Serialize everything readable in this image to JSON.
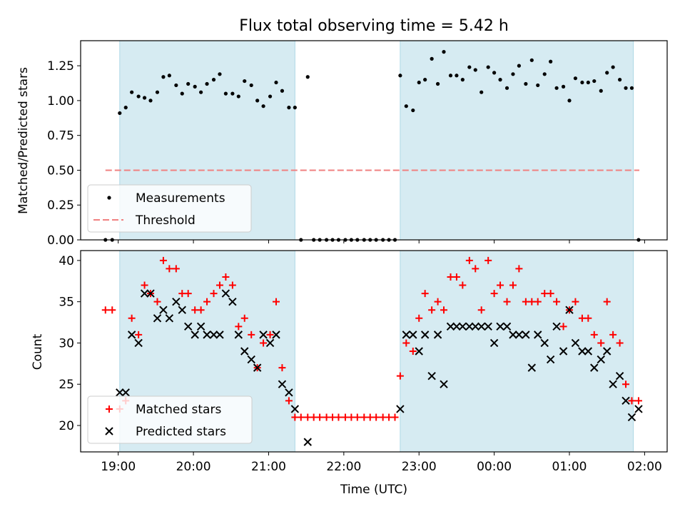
{
  "chart_data": [
    {
      "type": "scatter",
      "title": "Flux total observing time = 5.42 h",
      "xlabel": "",
      "ylabel": "Matched/Predicted stars",
      "ylim": [
        0,
        1.43
      ],
      "yticks": [
        "0.00",
        "0.25",
        "0.50",
        "0.75",
        "1.00",
        "1.25"
      ],
      "xticks": [
        "19:00",
        "20:00",
        "21:00",
        "22:00",
        "23:00",
        "00:00",
        "01:00",
        "02:00"
      ],
      "xrange_hours": [
        18.5,
        26.3
      ],
      "shaded_spans_hours": [
        [
          19.02,
          21.35
        ],
        [
          22.75,
          25.85
        ]
      ],
      "threshold": {
        "name": "Threshold",
        "value": 0.5,
        "x_start_hours": 18.83,
        "x_end_hours": 25.93,
        "color": "#f08080"
      },
      "legend": [
        "Measurements",
        "Threshold"
      ],
      "legend_loc": "lower left",
      "series": [
        {
          "name": "Measurements",
          "color": "#000000",
          "x": [
            18.83,
            18.92,
            19.02,
            19.1,
            19.18,
            19.27,
            19.35,
            19.43,
            19.52,
            19.6,
            19.68,
            19.77,
            19.85,
            19.93,
            20.02,
            20.1,
            20.18,
            20.27,
            20.35,
            20.43,
            20.52,
            20.6,
            20.68,
            20.77,
            20.85,
            20.93,
            21.02,
            21.1,
            21.18,
            21.27,
            21.35,
            21.43,
            21.52,
            21.6,
            21.68,
            21.77,
            21.85,
            21.93,
            22.02,
            22.1,
            22.18,
            22.27,
            22.35,
            22.43,
            22.52,
            22.6,
            22.68,
            22.75,
            22.83,
            22.92,
            23.0,
            23.08,
            23.17,
            23.25,
            23.33,
            23.42,
            23.5,
            23.58,
            23.67,
            23.75,
            23.83,
            23.92,
            24.0,
            24.08,
            24.17,
            24.25,
            24.33,
            24.42,
            24.5,
            24.58,
            24.67,
            24.75,
            24.83,
            24.92,
            25.0,
            25.08,
            25.17,
            25.25,
            25.33,
            25.42,
            25.5,
            25.58,
            25.67,
            25.75,
            25.83,
            25.92
          ],
          "y": [
            0,
            0,
            0.91,
            0.95,
            1.06,
            1.03,
            1.02,
            1.0,
            1.06,
            1.17,
            1.18,
            1.11,
            1.05,
            1.12,
            1.1,
            1.06,
            1.12,
            1.15,
            1.19,
            1.05,
            1.05,
            1.03,
            1.14,
            1.11,
            1.0,
            0.96,
            1.03,
            1.13,
            1.07,
            0.95,
            0.95,
            0,
            1.17,
            0,
            0,
            0,
            0,
            0,
            0,
            0,
            0,
            0,
            0,
            0,
            0,
            0,
            0,
            1.18,
            0.96,
            0.93,
            1.13,
            1.15,
            1.3,
            1.12,
            1.35,
            1.18,
            1.18,
            1.15,
            1.24,
            1.22,
            1.06,
            1.24,
            1.2,
            1.15,
            1.09,
            1.19,
            1.25,
            1.12,
            1.29,
            1.11,
            1.19,
            1.28,
            1.09,
            1.1,
            1.0,
            1.16,
            1.13,
            1.13,
            1.14,
            1.07,
            1.2,
            1.24,
            1.15,
            1.09,
            1.09,
            0
          ]
        }
      ]
    },
    {
      "type": "scatter",
      "title": "",
      "xlabel": "Time (UTC)",
      "ylabel": "Count",
      "ylim": [
        16.8,
        41.2
      ],
      "yticks": [
        "20",
        "25",
        "30",
        "35",
        "40"
      ],
      "xticks": [
        "19:00",
        "20:00",
        "21:00",
        "22:00",
        "23:00",
        "00:00",
        "01:00",
        "02:00"
      ],
      "xrange_hours": [
        18.5,
        26.3
      ],
      "shaded_spans_hours": [
        [
          19.02,
          21.35
        ],
        [
          22.75,
          25.85
        ]
      ],
      "legend": [
        "Matched stars",
        "Predicted stars"
      ],
      "legend_loc": "lower left",
      "series": [
        {
          "name": "Matched stars",
          "marker": "+",
          "color": "#ff0000",
          "x": [
            18.83,
            18.92,
            19.02,
            19.1,
            19.18,
            19.27,
            19.35,
            19.43,
            19.52,
            19.6,
            19.68,
            19.77,
            19.85,
            19.93,
            20.02,
            20.1,
            20.18,
            20.27,
            20.35,
            20.43,
            20.52,
            20.6,
            20.68,
            20.77,
            20.85,
            20.93,
            21.02,
            21.1,
            21.18,
            21.27,
            21.35,
            21.43,
            21.52,
            21.6,
            21.68,
            21.77,
            21.85,
            21.93,
            22.02,
            22.1,
            22.18,
            22.27,
            22.35,
            22.43,
            22.52,
            22.6,
            22.68,
            22.75,
            22.83,
            22.92,
            23.0,
            23.08,
            23.17,
            23.25,
            23.33,
            23.42,
            23.5,
            23.58,
            23.67,
            23.75,
            23.83,
            23.92,
            24.0,
            24.08,
            24.17,
            24.25,
            24.33,
            24.42,
            24.5,
            24.58,
            24.67,
            24.75,
            24.83,
            24.92,
            25.0,
            25.08,
            25.17,
            25.25,
            25.33,
            25.42,
            25.5,
            25.58,
            25.67,
            25.75,
            25.83,
            25.92
          ],
          "y": [
            34,
            34,
            22,
            23,
            33,
            31,
            37,
            36,
            35,
            40,
            39,
            39,
            36,
            36,
            34,
            34,
            35,
            36,
            37,
            38,
            37,
            32,
            33,
            31,
            27,
            30,
            31,
            35,
            27,
            23,
            21,
            21,
            21,
            21,
            21,
            21,
            21,
            21,
            21,
            21,
            21,
            21,
            21,
            21,
            21,
            21,
            21,
            26,
            30,
            29,
            33,
            36,
            34,
            35,
            34,
            38,
            38,
            37,
            40,
            39,
            34,
            40,
            36,
            37,
            35,
            37,
            39,
            35,
            35,
            35,
            36,
            36,
            35,
            32,
            34,
            35,
            33,
            33,
            31,
            30,
            35,
            31,
            30,
            25,
            23,
            23
          ]
        },
        {
          "name": "Predicted stars",
          "marker": "x",
          "color": "#000000",
          "x": [
            19.02,
            19.1,
            19.18,
            19.27,
            19.35,
            19.43,
            19.52,
            19.6,
            19.68,
            19.77,
            19.85,
            19.93,
            20.02,
            20.1,
            20.18,
            20.27,
            20.35,
            20.43,
            20.52,
            20.6,
            20.68,
            20.77,
            20.85,
            20.93,
            21.02,
            21.1,
            21.18,
            21.27,
            21.35,
            21.52,
            22.75,
            22.83,
            22.92,
            23.0,
            23.08,
            23.17,
            23.25,
            23.33,
            23.42,
            23.5,
            23.58,
            23.67,
            23.75,
            23.83,
            23.92,
            24.0,
            24.08,
            24.17,
            24.25,
            24.33,
            24.42,
            24.5,
            24.58,
            24.67,
            24.75,
            24.83,
            24.92,
            25.0,
            25.08,
            25.17,
            25.25,
            25.33,
            25.42,
            25.5,
            25.58,
            25.67,
            25.75,
            25.83,
            25.92
          ],
          "y": [
            24,
            24,
            31,
            30,
            36,
            36,
            33,
            34,
            33,
            35,
            34,
            32,
            31,
            32,
            31,
            31,
            31,
            36,
            35,
            31,
            29,
            28,
            27,
            31,
            30,
            31,
            25,
            24,
            22,
            18,
            22,
            31,
            31,
            29,
            31,
            26,
            31,
            25,
            32,
            32,
            32,
            32,
            32,
            32,
            32,
            30,
            32,
            32,
            31,
            31,
            31,
            27,
            31,
            30,
            28,
            32,
            29,
            34,
            30,
            29,
            29,
            27,
            28,
            29,
            25,
            26,
            23,
            21,
            22
          ]
        }
      ]
    }
  ]
}
